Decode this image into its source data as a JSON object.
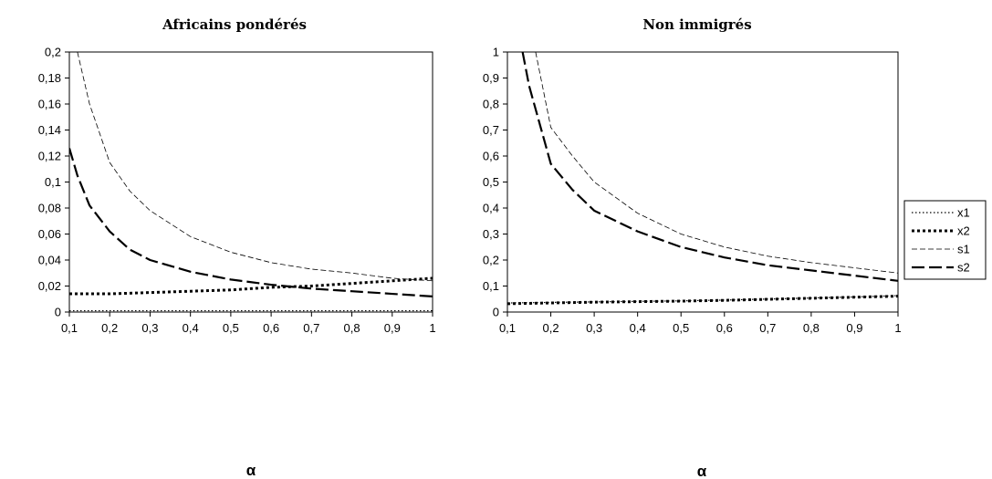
{
  "legend": {
    "placement": "right",
    "entries": [
      {
        "id": "x1",
        "label": "x1"
      },
      {
        "id": "x2",
        "label": "x2"
      },
      {
        "id": "s1",
        "label": "s1"
      },
      {
        "id": "s2",
        "label": "s2"
      }
    ]
  },
  "chart_data": [
    {
      "type": "line",
      "title": "Africains pondérés",
      "xlabel": "α",
      "ylabel": "",
      "xlim": [
        0.1,
        1
      ],
      "ylim": [
        0,
        0.2
      ],
      "grid": false,
      "xticks": [
        0.1,
        0.2,
        0.3,
        0.4,
        0.5,
        0.6,
        0.7,
        0.8,
        0.9,
        1
      ],
      "xtick_labels": [
        "0,1",
        "0,2",
        "0,3",
        "0,4",
        "0,5",
        "0,6",
        "0,7",
        "0,8",
        "0,9",
        "1"
      ],
      "yticks": [
        0,
        0.02,
        0.04,
        0.06,
        0.08,
        0.1,
        0.12,
        0.14,
        0.16,
        0.18,
        0.2
      ],
      "ytick_labels": [
        "0",
        "0,02",
        "0,04",
        "0,06",
        "0,08",
        "0,1",
        "0,12",
        "0,14",
        "0,16",
        "0,18",
        "0,2"
      ],
      "series": [
        {
          "id": "x1",
          "x": [
            0.1,
            0.2,
            0.3,
            0.4,
            0.5,
            0.6,
            0.7,
            0.8,
            0.9,
            1
          ],
          "y": [
            0.001,
            0.001,
            0.001,
            0.001,
            0.001,
            0.001,
            0.001,
            0.001,
            0.001,
            0.001
          ]
        },
        {
          "id": "x2",
          "x": [
            0.1,
            0.2,
            0.3,
            0.4,
            0.5,
            0.6,
            0.7,
            0.8,
            0.9,
            1
          ],
          "y": [
            0.014,
            0.014,
            0.015,
            0.016,
            0.017,
            0.019,
            0.02,
            0.022,
            0.024,
            0.026
          ]
        },
        {
          "id": "s1",
          "x": [
            0.12,
            0.15,
            0.2,
            0.25,
            0.3,
            0.4,
            0.5,
            0.6,
            0.7,
            0.8,
            0.9,
            1
          ],
          "y": [
            0.2,
            0.16,
            0.115,
            0.093,
            0.078,
            0.058,
            0.046,
            0.038,
            0.033,
            0.03,
            0.026,
            0.024
          ]
        },
        {
          "id": "s2",
          "x": [
            0.1,
            0.12,
            0.15,
            0.2,
            0.25,
            0.3,
            0.4,
            0.5,
            0.6,
            0.7,
            0.8,
            0.9,
            1
          ],
          "y": [
            0.126,
            0.105,
            0.082,
            0.062,
            0.048,
            0.04,
            0.031,
            0.025,
            0.021,
            0.018,
            0.016,
            0.014,
            0.012
          ]
        }
      ]
    },
    {
      "type": "line",
      "title": "Non immigrés",
      "xlabel": "α",
      "ylabel": "",
      "xlim": [
        0.1,
        1
      ],
      "ylim": [
        0,
        1
      ],
      "grid": false,
      "xticks": [
        0.1,
        0.2,
        0.3,
        0.4,
        0.5,
        0.6,
        0.7,
        0.8,
        0.9,
        1
      ],
      "xtick_labels": [
        "0,1",
        "0,2",
        "0,3",
        "0,4",
        "0,5",
        "0,6",
        "0,7",
        "0,8",
        "0,9",
        "1"
      ],
      "yticks": [
        0,
        0.1,
        0.2,
        0.3,
        0.4,
        0.5,
        0.6,
        0.7,
        0.8,
        0.9,
        1
      ],
      "ytick_labels": [
        "0",
        "0,1",
        "0,2",
        "0,3",
        "0,4",
        "0,5",
        "0,6",
        "0,7",
        "0,8",
        "0,9",
        "1"
      ],
      "series": [
        {
          "id": "x1",
          "x": [
            0.1,
            0.2,
            0.3,
            0.4,
            0.5,
            0.6,
            0.7,
            0.8,
            0.9,
            1
          ],
          "y": [
            0.035,
            0.037,
            0.039,
            0.041,
            0.043,
            0.046,
            0.05,
            0.054,
            0.058,
            0.063
          ]
        },
        {
          "id": "x2",
          "x": [
            0.1,
            0.2,
            0.3,
            0.4,
            0.5,
            0.6,
            0.7,
            0.8,
            0.9,
            1
          ],
          "y": [
            0.032,
            0.035,
            0.038,
            0.04,
            0.042,
            0.045,
            0.049,
            0.053,
            0.057,
            0.061
          ]
        },
        {
          "id": "s1",
          "x": [
            0.165,
            0.2,
            0.25,
            0.3,
            0.4,
            0.5,
            0.6,
            0.7,
            0.8,
            0.9,
            1
          ],
          "y": [
            1,
            0.71,
            0.6,
            0.5,
            0.38,
            0.3,
            0.25,
            0.215,
            0.19,
            0.17,
            0.15
          ]
        },
        {
          "id": "s2",
          "x": [
            0.135,
            0.15,
            0.2,
            0.25,
            0.3,
            0.4,
            0.5,
            0.6,
            0.7,
            0.8,
            0.9,
            1
          ],
          "y": [
            1,
            0.87,
            0.57,
            0.47,
            0.39,
            0.31,
            0.25,
            0.21,
            0.18,
            0.16,
            0.14,
            0.12
          ]
        }
      ]
    }
  ],
  "styles": {
    "x1": {
      "color": "#000000",
      "width": 1.2,
      "dash": "1.5,2.5"
    },
    "x2": {
      "color": "#000000",
      "width": 3,
      "dash": "3,3"
    },
    "s1": {
      "color": "#000000",
      "width": 0.8,
      "dash": "6,3"
    },
    "s2": {
      "color": "#000000",
      "width": 2.2,
      "dash": "14,5"
    }
  }
}
